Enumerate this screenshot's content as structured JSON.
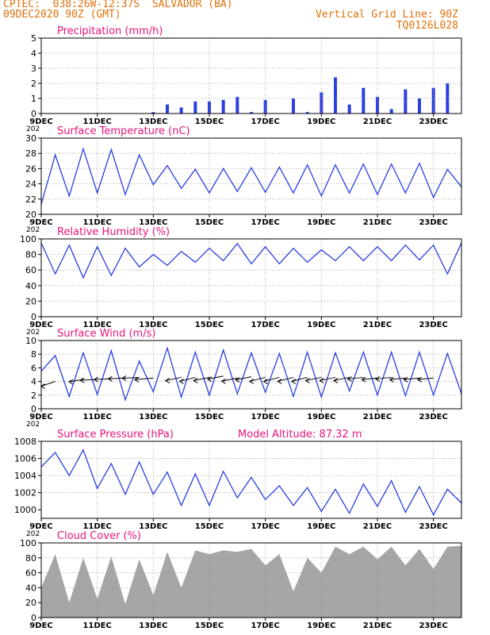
{
  "header": {
    "left_line1": "CPTEC:  038:26W-12:37S  SALVADOR (BA)",
    "left_line2": "09DEC2020 90Z (GMT)",
    "right_line1": "Vertical Grid Line: 90Z",
    "right_line2": "TQ0126L028"
  },
  "colors": {
    "header": "#e0700a",
    "title": "#e8147a",
    "series": "#2a3fe0",
    "cloud": "#a6a6a6",
    "wind_arrow": "#000000"
  },
  "x_axis": {
    "ticks": [
      "9DEC",
      "11DEC",
      "13DEC",
      "15DEC",
      "17DEC",
      "19DEC",
      "21DEC",
      "23DEC"
    ],
    "cut_label": "202"
  },
  "chart_data": [
    {
      "id": "precip",
      "type": "bar",
      "title": "Precipitation (mm/h)",
      "ylim": [
        0,
        5
      ],
      "yticks": [
        "0",
        "1",
        "2",
        "3",
        "4",
        "5"
      ],
      "x": [
        0.5,
        1,
        1.5,
        2,
        2.5,
        3,
        3.5,
        4,
        4.5,
        5,
        5.5,
        6,
        6.5,
        7,
        7.5,
        8,
        8.5,
        9,
        9.5,
        10,
        10.5,
        11,
        11.5,
        12,
        12.5,
        13,
        13.5,
        14,
        14.5
      ],
      "values": [
        0,
        0,
        0,
        0,
        0,
        0,
        0,
        0.1,
        0.6,
        0.4,
        0.8,
        0.8,
        0.9,
        1.1,
        0.1,
        0.9,
        0,
        1.0,
        0.1,
        1.4,
        2.4,
        0.6,
        1.7,
        1.1,
        0.3,
        1.6,
        1.0,
        1.7,
        2.0
      ],
      "grid": true
    },
    {
      "id": "temp",
      "type": "line",
      "title": "Surface Temperature (nC)",
      "ylim": [
        20,
        30
      ],
      "yticks": [
        "20",
        "22",
        "24",
        "26",
        "28",
        "30"
      ],
      "x": [
        0,
        0.5,
        1,
        1.5,
        2,
        2.5,
        3,
        3.5,
        4,
        4.5,
        5,
        5.5,
        6,
        6.5,
        7,
        7.5,
        8,
        8.5,
        9,
        9.5,
        10,
        10.5,
        11,
        11.5,
        12,
        12.5,
        13,
        13.5,
        14,
        14.5,
        15
      ],
      "values": [
        21.3,
        27.8,
        22.4,
        28.6,
        22.8,
        28.5,
        22.6,
        27.8,
        23.9,
        26.4,
        23.4,
        25.9,
        22.8,
        26.0,
        23.0,
        26.1,
        22.9,
        26.2,
        22.8,
        26.5,
        22.4,
        26.5,
        22.8,
        26.6,
        22.6,
        26.6,
        22.8,
        26.7,
        22.2,
        25.9,
        23.6
      ],
      "grid": true
    },
    {
      "id": "rh",
      "type": "line",
      "title": "Relative Humidity (%)",
      "ylim": [
        0,
        100
      ],
      "yticks": [
        "0",
        "20",
        "40",
        "60",
        "80",
        "100"
      ],
      "x": [
        0,
        0.5,
        1,
        1.5,
        2,
        2.5,
        3,
        3.5,
        4,
        4.5,
        5,
        5.5,
        6,
        6.5,
        7,
        7.5,
        8,
        8.5,
        9,
        9.5,
        10,
        10.5,
        11,
        11.5,
        12,
        12.5,
        13,
        13.5,
        14,
        14.5,
        15
      ],
      "values": [
        95,
        55,
        92,
        50,
        90,
        53,
        88,
        64,
        80,
        66,
        84,
        70,
        88,
        72,
        94,
        68,
        90,
        68,
        88,
        70,
        86,
        72,
        90,
        72,
        90,
        72,
        92,
        73,
        92,
        55,
        95
      ],
      "grid": true
    },
    {
      "id": "wind",
      "type": "line",
      "title": "Surface Wind (m/s)",
      "ylim": [
        0,
        10
      ],
      "yticks": [
        "0",
        "2",
        "4",
        "6",
        "8",
        "10"
      ],
      "x": [
        0,
        0.5,
        1,
        1.5,
        2,
        2.5,
        3,
        3.5,
        4,
        4.5,
        5,
        5.5,
        6,
        6.5,
        7,
        7.5,
        8,
        8.5,
        9,
        9.5,
        10,
        10.5,
        11,
        11.5,
        12,
        12.5,
        13,
        13.5,
        14,
        14.5,
        15
      ],
      "values": [
        5.5,
        7.8,
        1.8,
        8.2,
        2.1,
        8.5,
        1.3,
        7.0,
        2.5,
        8.9,
        1.7,
        8.3,
        2.0,
        8.6,
        2.2,
        8.2,
        2.4,
        8.1,
        1.8,
        8.3,
        1.7,
        8.2,
        2.6,
        8.3,
        2.0,
        8.3,
        1.9,
        8.3,
        2.0,
        8.1,
        2.2
      ],
      "arrows": {
        "x": [
          0.5,
          1.5,
          2,
          2.5,
          3,
          3.5,
          4,
          5,
          5.5,
          6,
          6.5,
          7,
          7.5,
          8,
          8.5,
          9,
          9.5,
          10,
          10.5,
          11,
          11.5,
          12,
          12.5,
          13,
          13.5,
          14
        ],
        "y": [
          4,
          4.3,
          4.3,
          4.4,
          4.5,
          4.6,
          4.5,
          4.6,
          4.6,
          4.6,
          4.8,
          4.5,
          4.7,
          4.6,
          4.6,
          4.6,
          4.6,
          4.6,
          4.6,
          4.6,
          4.6,
          4.5,
          4.6,
          4.5,
          4.5,
          4.5
        ],
        "u": [
          1,
          1,
          1.2,
          1.2,
          1.2,
          1.2,
          1.3,
          1.1,
          1.1,
          1.1,
          1.1,
          1.1,
          1.1,
          1.1,
          1.1,
          1.1,
          1.1,
          1.1,
          1.1,
          1.1,
          1.1,
          1.1,
          1.1,
          1.1,
          1.1,
          1.1
        ],
        "v": [
          0.6,
          0.3,
          0.1,
          0.1,
          0.1,
          0.1,
          0.2,
          0.4,
          0.5,
          0.4,
          0.4,
          0.4,
          0.4,
          0.5,
          0.5,
          0.5,
          0.5,
          0.4,
          0.4,
          0.4,
          0.2,
          0.2,
          0.2,
          0.2,
          0.2,
          0.2
        ]
      },
      "grid": true
    },
    {
      "id": "pres",
      "type": "line",
      "title": "Surface Pressure (hPa)",
      "annotation": "Model Altitude: 87.32  m",
      "ylim": [
        999,
        1008
      ],
      "yticks": [
        "1000",
        "1002",
        "1004",
        "1006",
        "1008"
      ],
      "x": [
        0,
        0.5,
        1,
        1.5,
        2,
        2.5,
        3,
        3.5,
        4,
        4.5,
        5,
        5.5,
        6,
        6.5,
        7,
        7.5,
        8,
        8.5,
        9,
        9.5,
        10,
        10.5,
        11,
        11.5,
        12,
        12.5,
        13,
        13.5,
        14,
        14.5,
        15
      ],
      "values": [
        1005,
        1006.7,
        1004,
        1007,
        1002.5,
        1005.4,
        1001.8,
        1005.6,
        1001.8,
        1004.4,
        1000.5,
        1004.2,
        1000.5,
        1004.5,
        1001.4,
        1003.8,
        1001.2,
        1002.8,
        1000.5,
        1002.6,
        999.8,
        1002.4,
        999.6,
        1003.0,
        1000.4,
        1003.4,
        999.7,
        1002.7,
        999.4,
        1002.4,
        1000.8
      ],
      "grid": true
    },
    {
      "id": "cloud",
      "type": "area",
      "title": "Cloud Cover (%)",
      "ylim": [
        0,
        100
      ],
      "yticks": [
        "0",
        "20",
        "40",
        "60",
        "80",
        "100"
      ],
      "x": [
        0,
        0.5,
        1,
        1.5,
        2,
        2.5,
        3,
        3.5,
        4,
        4.5,
        5,
        5.5,
        6,
        6.5,
        7,
        7.5,
        8,
        8.5,
        9,
        9.5,
        10,
        10.5,
        11,
        11.5,
        12,
        12.5,
        13,
        13.5,
        14,
        14.5,
        15
      ],
      "values": [
        40,
        85,
        20,
        80,
        25,
        82,
        18,
        78,
        30,
        88,
        40,
        90,
        85,
        90,
        88,
        92,
        70,
        85,
        35,
        80,
        60,
        95,
        85,
        95,
        78,
        95,
        70,
        92,
        65,
        95,
        96
      ],
      "grid": true
    }
  ]
}
